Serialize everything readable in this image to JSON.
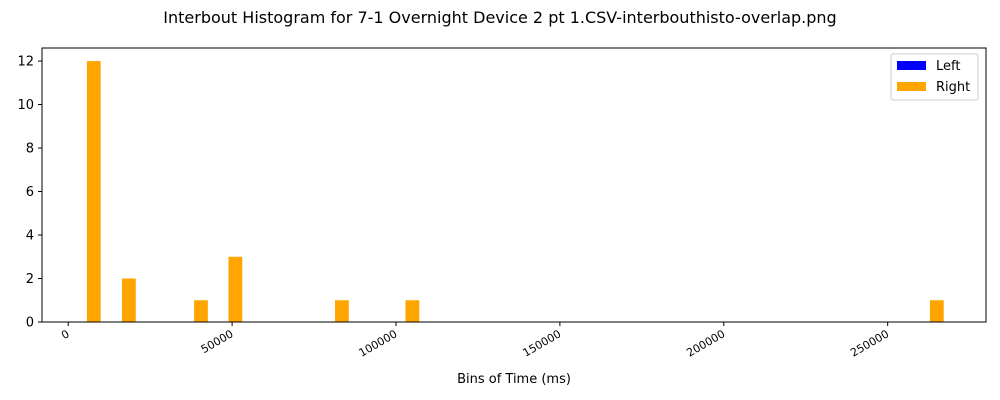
{
  "chart_data": {
    "type": "bar",
    "title": "Interbout Histogram for 7-1 Overnight Device 2 pt 1.CSV-interbouthisto-overlap.png",
    "xlabel": "Bins of Time (ms)",
    "ylabel": "",
    "xlim": [
      -8000,
      280000
    ],
    "ylim": [
      0,
      12.6
    ],
    "x_ticks": [
      0,
      50000,
      100000,
      150000,
      200000,
      250000
    ],
    "x_tick_labels": [
      "0",
      "50000",
      "100000",
      "150000",
      "200000",
      "250000"
    ],
    "y_ticks": [
      0,
      2,
      4,
      6,
      8,
      10,
      12
    ],
    "y_tick_labels": [
      "0",
      "2",
      "4",
      "6",
      "8",
      "10",
      "12"
    ],
    "legend_position": "top-right",
    "grid": false,
    "series": [
      {
        "name": "Left",
        "color": "#0000ff",
        "bars": []
      },
      {
        "name": "Right",
        "color": "#ffa500",
        "bars": [
          {
            "x": 7800,
            "value": 12
          },
          {
            "x": 18500,
            "value": 2
          },
          {
            "x": 40500,
            "value": 1
          },
          {
            "x": 51000,
            "value": 3
          },
          {
            "x": 83500,
            "value": 1
          },
          {
            "x": 105000,
            "value": 1
          },
          {
            "x": 265000,
            "value": 1
          }
        ]
      }
    ],
    "bar_width": 4200
  }
}
